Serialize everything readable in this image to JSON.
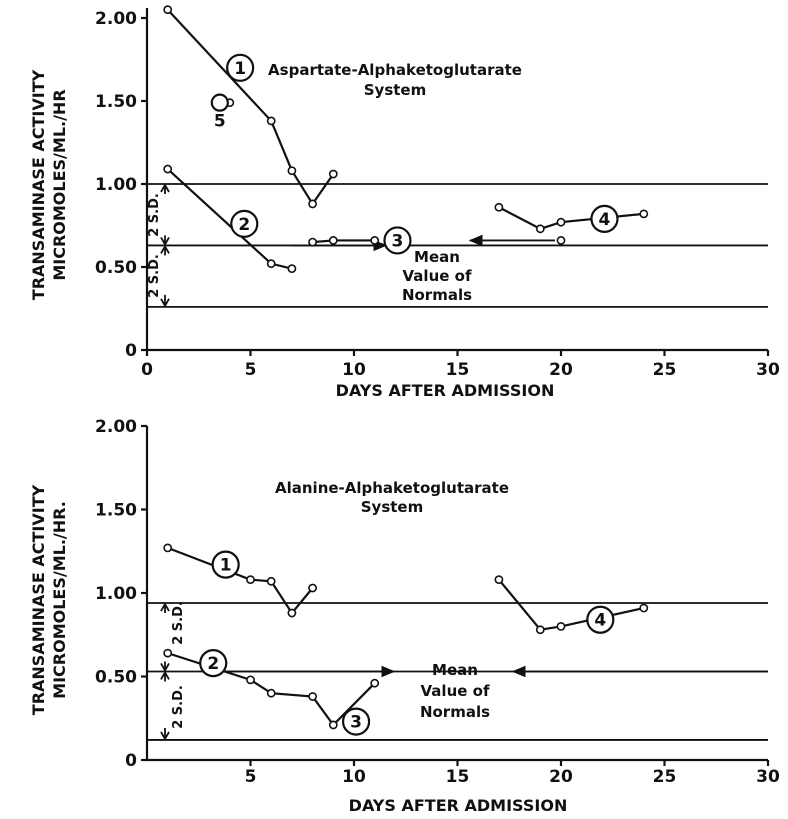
{
  "chart_data": [
    {
      "type": "line",
      "title": "Aspartate-Alphaketoglutarate System",
      "title_lines": [
        "Aspartate-Alphaketoglutarate",
        "System"
      ],
      "xlabel": "DAYS  AFTER  ADMISSION",
      "ylabel_lines": [
        "TRANSAMINASE ACTIVITY",
        "MICROMOLES/ML./HR"
      ],
      "xlim": [
        0,
        30
      ],
      "ylim": [
        0,
        2.0
      ],
      "x_ticks": [
        "0",
        "5",
        "10",
        "15",
        "20",
        "25",
        "30"
      ],
      "y_ticks": [
        "0",
        "0.50",
        "1.00",
        "1.50",
        "2.00"
      ],
      "reference_lines": {
        "upper": 1.0,
        "mean": 0.63,
        "lower": 0.26
      },
      "sd_label": "2 S.D.",
      "mean_label_lines": [
        "Mean",
        "Value of",
        "Normals"
      ],
      "series": [
        {
          "name": "1",
          "x": [
            1,
            6,
            7,
            8,
            9
          ],
          "y": [
            2.05,
            1.38,
            1.08,
            0.88,
            1.06
          ]
        },
        {
          "name": "2",
          "x": [
            1,
            6,
            7
          ],
          "y": [
            1.09,
            0.52,
            0.49
          ]
        },
        {
          "name": "3",
          "x": [
            8,
            9,
            11
          ],
          "y": [
            0.65,
            0.66,
            0.66
          ]
        },
        {
          "name": "4",
          "x": [
            17,
            19,
            20,
            24
          ],
          "y": [
            0.86,
            0.73,
            0.77,
            0.82
          ]
        },
        {
          "name": "5",
          "x": [
            4
          ],
          "y": [
            1.49
          ]
        }
      ],
      "extra_points": [
        {
          "x": 20,
          "y": 0.66
        }
      ]
    },
    {
      "type": "line",
      "title": "Alanine-Alphaketoglutarate System",
      "title_lines": [
        "Alanine-Alphaketoglutarate",
        "System"
      ],
      "xlabel": "DAYS  AFTER  ADMISSION",
      "ylabel_lines": [
        "TRANSAMINASE ACTIVITY",
        "MICROMOLES/ML./HR."
      ],
      "xlim": [
        0,
        30
      ],
      "ylim": [
        0,
        2.0
      ],
      "x_ticks": [
        "5",
        "10",
        "15",
        "20",
        "25",
        "30"
      ],
      "y_ticks": [
        "0",
        "0.50",
        "1.00",
        "1.50",
        "2.00"
      ],
      "reference_lines": {
        "upper": 0.94,
        "mean": 0.53,
        "lower": 0.12
      },
      "sd_label": "2 S.D.",
      "mean_label_lines": [
        "Mean",
        "Value of",
        "Normals"
      ],
      "series": [
        {
          "name": "1",
          "x": [
            1,
            5,
            6,
            7,
            8
          ],
          "y": [
            1.27,
            1.08,
            1.07,
            0.88,
            1.03
          ]
        },
        {
          "name": "2",
          "x": [
            1,
            5,
            6,
            8,
            9,
            11
          ],
          "y": [
            0.64,
            0.48,
            0.4,
            0.38,
            0.21,
            0.46
          ]
        },
        {
          "name": "4",
          "x": [
            17,
            19,
            20,
            24
          ],
          "y": [
            1.08,
            0.78,
            0.8,
            0.91
          ]
        }
      ]
    }
  ]
}
